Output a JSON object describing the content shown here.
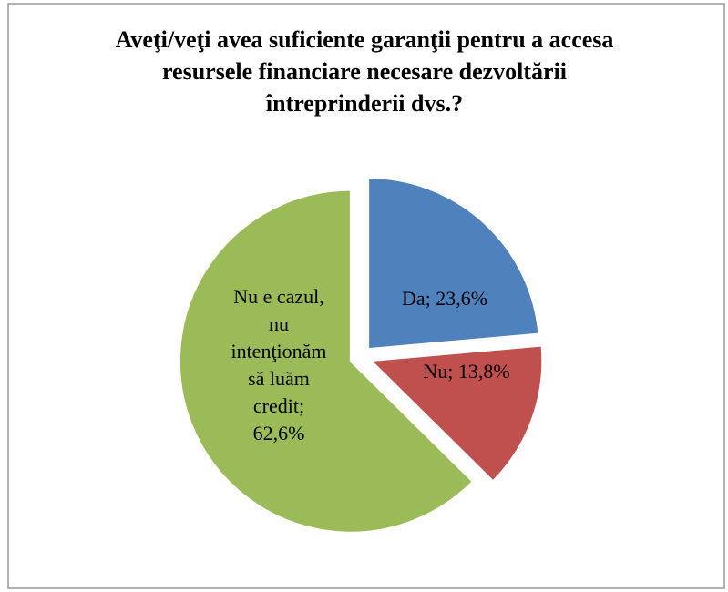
{
  "chart_data": {
    "type": "pie",
    "title": "Aveţi/veţi avea suficiente garanţii pentru a accesa resursele financiare necesare dezvoltării întreprinderii dvs.?",
    "categories": [
      "Da",
      "Nu",
      "Nu e cazul, nu intenţionăm să luăm credit"
    ],
    "values": [
      23.6,
      13.8,
      62.6
    ],
    "value_labels": [
      [
        "Da; 23,6%"
      ],
      [
        "Nu; 13,8%"
      ],
      [
        "Nu e cazul,",
        "nu",
        "intenţionăm",
        "să luăm",
        "credit;",
        "62,6%"
      ]
    ],
    "colors": [
      "#4f81bd",
      "#c0504d",
      "#9bbb59"
    ]
  }
}
